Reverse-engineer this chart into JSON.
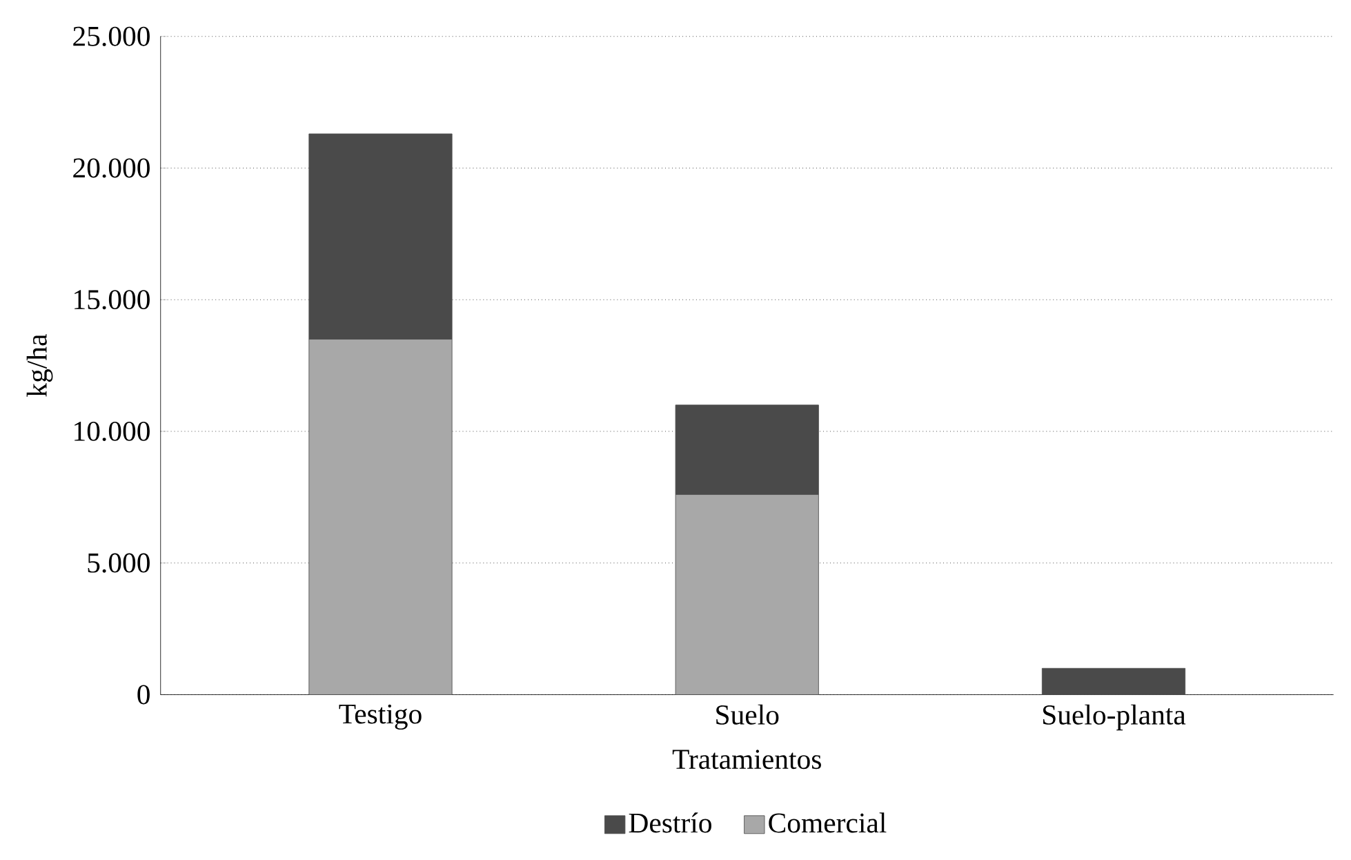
{
  "chart_data": {
    "type": "bar",
    "stacked": true,
    "xlabel": "Tratamientos",
    "ylabel": "kg/ha",
    "categories": [
      "Testigo",
      "Suelo",
      "Suelo-planta"
    ],
    "series": [
      {
        "name": "Comercial",
        "color": "#a8a8a8",
        "values": [
          13500,
          7600,
          0
        ]
      },
      {
        "name": "Destrío",
        "color": "#4a4a4a",
        "values": [
          7800,
          3400,
          1000
        ]
      }
    ],
    "ylim": [
      0,
      25000
    ],
    "yticks": [
      0,
      {
        "value": 5000,
        "label": "5.000"
      },
      {
        "value": 10000,
        "label": "10.000"
      },
      {
        "value": 15000,
        "label": "15.000"
      },
      {
        "value": 20000,
        "label": "20.000"
      },
      {
        "value": 25000,
        "label": "25.000"
      }
    ],
    "grid": "y",
    "legend": "bottom"
  }
}
